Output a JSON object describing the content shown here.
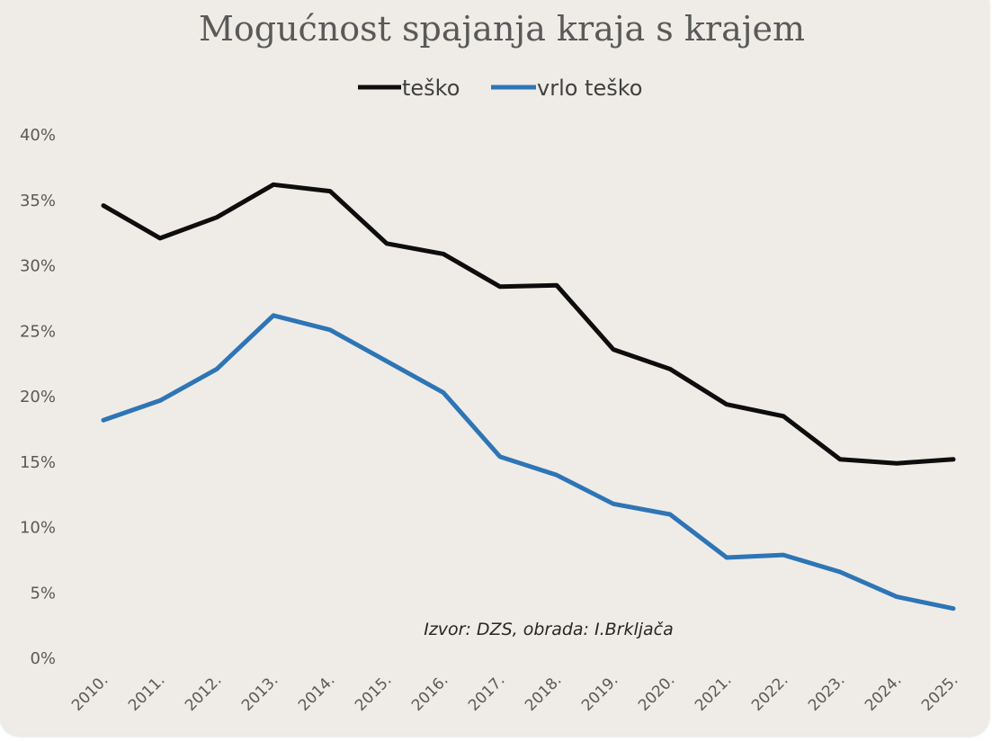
{
  "chart_data": {
    "type": "line",
    "title": "Mogućnost spajanja kraja s krajem",
    "categories": [
      "2010.",
      "2011.",
      "2012.",
      "2013.",
      "2014.",
      "2015.",
      "2016.",
      "2017.",
      "2018.",
      "2019.",
      "2020.",
      "2021.",
      "2022.",
      "2023.",
      "2024.",
      "2025."
    ],
    "series": [
      {
        "name": "teško",
        "color": "#0d0d0d",
        "values": [
          34.6,
          32.1,
          33.7,
          36.2,
          35.7,
          31.7,
          30.9,
          28.4,
          28.5,
          23.6,
          22.1,
          19.4,
          18.5,
          15.2,
          14.9,
          15.2
        ]
      },
      {
        "name": "vrlo teško",
        "color": "#2e75b6",
        "values": [
          18.2,
          19.7,
          22.1,
          26.2,
          25.1,
          22.7,
          20.3,
          15.4,
          14.0,
          11.8,
          11.0,
          7.7,
          7.9,
          6.6,
          4.7,
          3.8
        ]
      }
    ],
    "yticks": [
      "0%",
      "5%",
      "10%",
      "15%",
      "20%",
      "25%",
      "30%",
      "35%",
      "40%"
    ],
    "ylim": [
      0,
      40
    ],
    "grid": false,
    "legend_position": "top-center",
    "annotation": "Izvor: DZS, obrada: I.Brkljača"
  }
}
